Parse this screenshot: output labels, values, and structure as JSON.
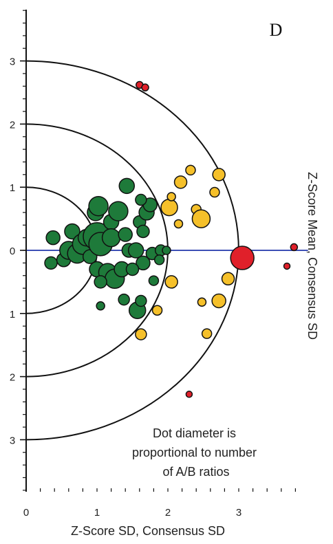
{
  "chart_data": {
    "type": "scatter",
    "panel_label": "D",
    "xlabel": "Z-Score SD, Consensus SD",
    "ylabel": "Z-Score Mean, Consensus SD",
    "xlim": [
      0,
      3.9
    ],
    "ylim": [
      -3.8,
      3.8
    ],
    "x_ticks": [
      0,
      1,
      2,
      3
    ],
    "x_tick_labels": [
      "0",
      "1",
      "2",
      "3"
    ],
    "y_ticks": [
      3,
      2,
      1,
      0,
      -1,
      -2,
      -3
    ],
    "y_tick_labels": [
      "3",
      "2",
      "1",
      "0",
      "1",
      "2",
      "3"
    ],
    "reference_arcs": [
      1,
      2,
      3
    ],
    "horizontal_reference_line": 0,
    "annotation": [
      "Dot diameter is",
      "proportional to number",
      "of A/B ratios"
    ],
    "colors": {
      "green": "#1e7a3a",
      "yellow": "#f5c02a",
      "red": "#e0202a",
      "line": "#3d4fb5"
    },
    "points": [
      {
        "x": 0.38,
        "y": 0.2,
        "s": 20,
        "c": "green"
      },
      {
        "x": 0.35,
        "y": -0.2,
        "s": 18,
        "c": "green"
      },
      {
        "x": 0.53,
        "y": -0.15,
        "s": 20,
        "c": "green"
      },
      {
        "x": 0.6,
        "y": 0.0,
        "s": 26,
        "c": "green"
      },
      {
        "x": 0.65,
        "y": 0.3,
        "s": 22,
        "c": "green"
      },
      {
        "x": 0.72,
        "y": -0.05,
        "s": 28,
        "c": "green"
      },
      {
        "x": 0.8,
        "y": 0.1,
        "s": 30,
        "c": "green"
      },
      {
        "x": 0.85,
        "y": 0.2,
        "s": 24,
        "c": "green"
      },
      {
        "x": 0.9,
        "y": -0.1,
        "s": 20,
        "c": "green"
      },
      {
        "x": 1.0,
        "y": 0.22,
        "s": 40,
        "c": "green"
      },
      {
        "x": 1.05,
        "y": 0.1,
        "s": 34,
        "c": "green"
      },
      {
        "x": 0.98,
        "y": 0.6,
        "s": 24,
        "c": "green"
      },
      {
        "x": 1.02,
        "y": 0.7,
        "s": 28,
        "c": "green"
      },
      {
        "x": 1.2,
        "y": 0.45,
        "s": 22,
        "c": "green"
      },
      {
        "x": 1.3,
        "y": 0.62,
        "s": 28,
        "c": "green"
      },
      {
        "x": 1.2,
        "y": 0.2,
        "s": 26,
        "c": "green"
      },
      {
        "x": 1.4,
        "y": 0.25,
        "s": 20,
        "c": "green"
      },
      {
        "x": 1.45,
        "y": 0.0,
        "s": 20,
        "c": "green"
      },
      {
        "x": 1.0,
        "y": -0.3,
        "s": 22,
        "c": "green"
      },
      {
        "x": 1.15,
        "y": -0.35,
        "s": 26,
        "c": "green"
      },
      {
        "x": 1.25,
        "y": -0.45,
        "s": 28,
        "c": "green"
      },
      {
        "x": 1.35,
        "y": -0.3,
        "s": 22,
        "c": "green"
      },
      {
        "x": 1.05,
        "y": -0.5,
        "s": 18,
        "c": "green"
      },
      {
        "x": 1.42,
        "y": 1.02,
        "s": 22,
        "c": "green"
      },
      {
        "x": 1.6,
        "y": 0.45,
        "s": 18,
        "c": "green"
      },
      {
        "x": 1.65,
        "y": 0.3,
        "s": 18,
        "c": "green"
      },
      {
        "x": 1.7,
        "y": 0.6,
        "s": 22,
        "c": "green"
      },
      {
        "x": 1.75,
        "y": 0.72,
        "s": 20,
        "c": "green"
      },
      {
        "x": 1.62,
        "y": 0.8,
        "s": 16,
        "c": "green"
      },
      {
        "x": 1.55,
        "y": 0.0,
        "s": 22,
        "c": "green"
      },
      {
        "x": 1.65,
        "y": -0.2,
        "s": 20,
        "c": "green"
      },
      {
        "x": 1.5,
        "y": -0.3,
        "s": 18,
        "c": "green"
      },
      {
        "x": 1.78,
        "y": -0.05,
        "s": 18,
        "c": "green"
      },
      {
        "x": 1.9,
        "y": 0.0,
        "s": 16,
        "c": "green"
      },
      {
        "x": 1.88,
        "y": -0.15,
        "s": 14,
        "c": "green"
      },
      {
        "x": 1.57,
        "y": -0.95,
        "s": 24,
        "c": "green"
      },
      {
        "x": 1.62,
        "y": -0.8,
        "s": 16,
        "c": "green"
      },
      {
        "x": 1.38,
        "y": -0.78,
        "s": 16,
        "c": "green"
      },
      {
        "x": 1.8,
        "y": -0.48,
        "s": 14,
        "c": "green"
      },
      {
        "x": 1.05,
        "y": -0.88,
        "s": 12,
        "c": "green"
      },
      {
        "x": 1.98,
        "y": 0.0,
        "s": 12,
        "c": "green"
      },
      {
        "x": 2.02,
        "y": 0.68,
        "s": 24,
        "c": "yellow"
      },
      {
        "x": 2.18,
        "y": 1.08,
        "s": 18,
        "c": "yellow"
      },
      {
        "x": 2.32,
        "y": 1.27,
        "s": 14,
        "c": "yellow"
      },
      {
        "x": 2.72,
        "y": 1.2,
        "s": 18,
        "c": "yellow"
      },
      {
        "x": 2.66,
        "y": 0.92,
        "s": 14,
        "c": "yellow"
      },
      {
        "x": 2.4,
        "y": 0.65,
        "s": 14,
        "c": "yellow"
      },
      {
        "x": 2.47,
        "y": 0.5,
        "s": 26,
        "c": "yellow"
      },
      {
        "x": 2.15,
        "y": 0.42,
        "s": 12,
        "c": "yellow"
      },
      {
        "x": 2.05,
        "y": 0.85,
        "s": 12,
        "c": "yellow"
      },
      {
        "x": 2.05,
        "y": -0.5,
        "s": 18,
        "c": "yellow"
      },
      {
        "x": 2.85,
        "y": -0.45,
        "s": 18,
        "c": "yellow"
      },
      {
        "x": 2.72,
        "y": -0.8,
        "s": 20,
        "c": "yellow"
      },
      {
        "x": 2.48,
        "y": -0.82,
        "s": 12,
        "c": "yellow"
      },
      {
        "x": 2.55,
        "y": -1.32,
        "s": 14,
        "c": "yellow"
      },
      {
        "x": 1.62,
        "y": -1.33,
        "s": 16,
        "c": "yellow"
      },
      {
        "x": 1.85,
        "y": -0.95,
        "s": 14,
        "c": "yellow"
      },
      {
        "x": 3.05,
        "y": -0.12,
        "s": 34,
        "c": "red"
      },
      {
        "x": 1.6,
        "y": 2.62,
        "s": 10,
        "c": "red"
      },
      {
        "x": 1.68,
        "y": 2.58,
        "s": 10,
        "c": "red"
      },
      {
        "x": 3.78,
        "y": 0.05,
        "s": 10,
        "c": "red"
      },
      {
        "x": 3.68,
        "y": -0.25,
        "s": 9,
        "c": "red"
      },
      {
        "x": 2.3,
        "y": -2.28,
        "s": 9,
        "c": "red"
      }
    ]
  }
}
